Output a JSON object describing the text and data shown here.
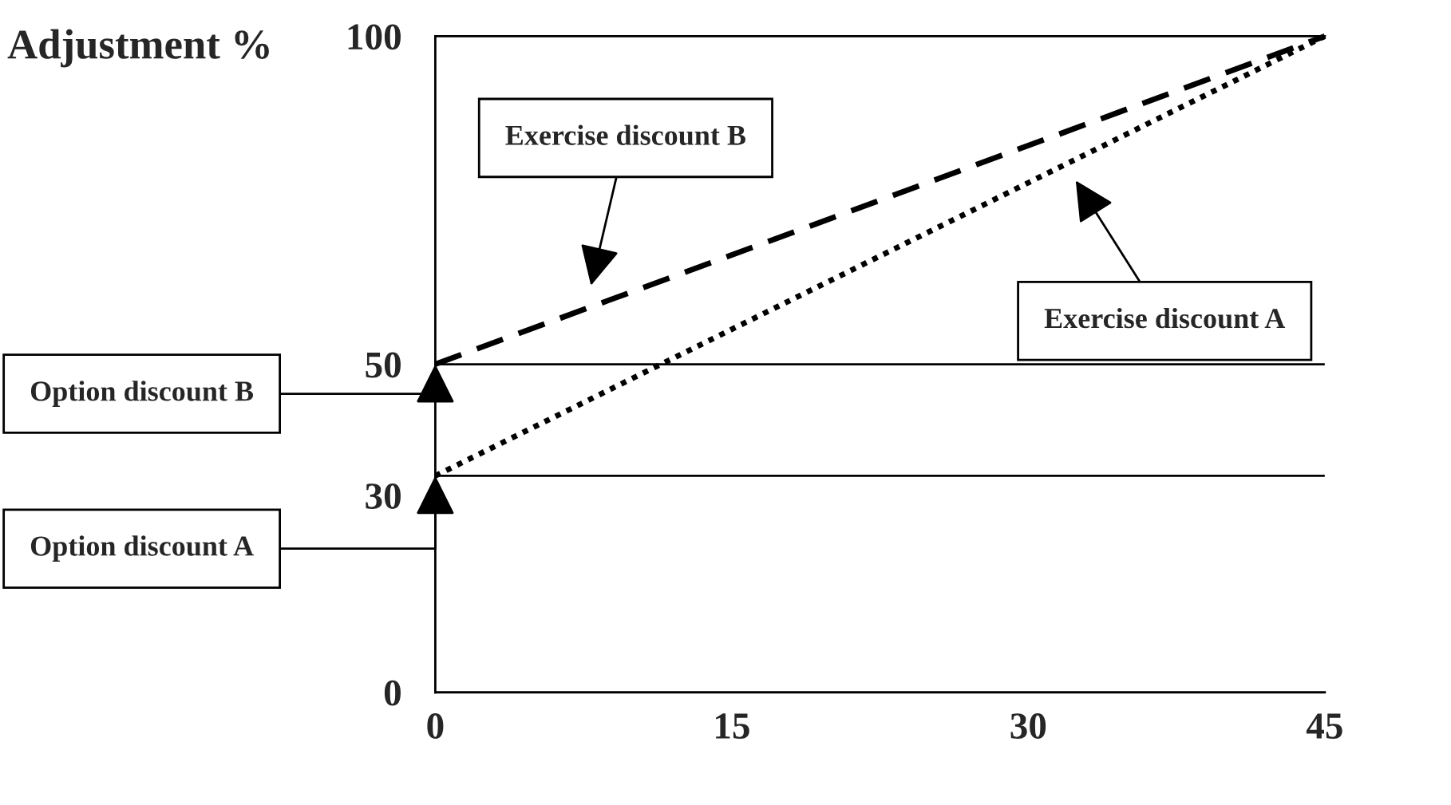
{
  "chart_data": {
    "type": "line",
    "ylabel": "Adjustment %",
    "xlim": [
      0,
      45
    ],
    "ylim": [
      0,
      100
    ],
    "xticks": [
      0,
      15,
      30,
      45
    ],
    "yticks": [
      0,
      30,
      50,
      100
    ],
    "grid": false,
    "legend": false,
    "series": [
      {
        "color": "#000000",
        "line_style": "dashed",
        "values": [
          50,
          100
        ]
      },
      {
        "color": "#000000",
        "line_style": "dotted",
        "values": [
          33,
          100
        ]
      }
    ],
    "x": [
      0,
      45
    ],
    "ref_lines": [
      {
        "axis": "y",
        "value": 50,
        "color": "#000000",
        "line_style": "solid"
      },
      {
        "axis": "y",
        "value": 33,
        "color": "#000000",
        "line_style": "solid"
      }
    ],
    "annotations": [
      "Exercise discount B",
      "Exercise discount A",
      "Option discount B",
      "Option discount A"
    ]
  }
}
